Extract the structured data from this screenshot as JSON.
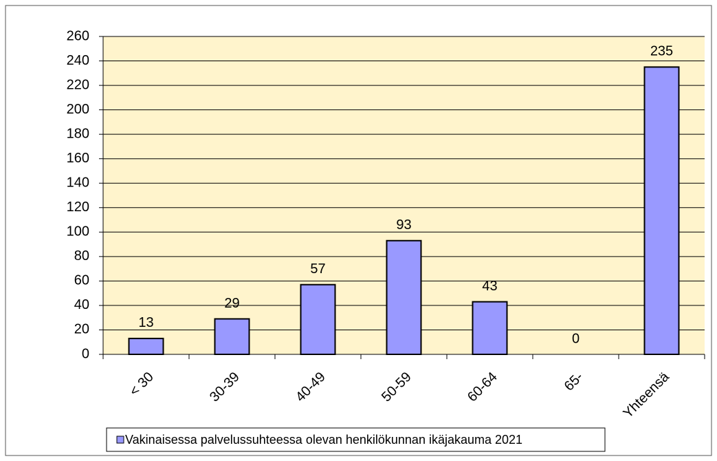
{
  "chart_data": {
    "type": "bar",
    "categories": [
      "< 30",
      "30-39",
      "40-49",
      "50-59",
      "60-64",
      "65-",
      "Yhteensä"
    ],
    "series": [
      {
        "name": "Vakinaisessa palvelussuhteessa olevan henkilökunnan ikäjakauma 2021",
        "color": "#9999ff",
        "values": [
          13,
          29,
          57,
          93,
          43,
          0,
          235
        ]
      }
    ],
    "ylim": [
      0,
      260
    ],
    "yticks": [
      0,
      20,
      40,
      60,
      80,
      100,
      120,
      140,
      160,
      180,
      200,
      220,
      240,
      260
    ],
    "grid": true,
    "legend": "bottom"
  }
}
